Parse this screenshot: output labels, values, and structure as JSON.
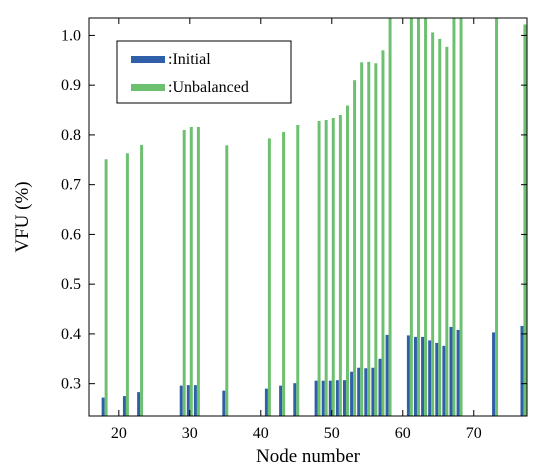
{
  "chart_data": {
    "type": "bar",
    "xlabel": "Node number",
    "ylabel": "VFU (%)",
    "xlim": [
      15.8,
      77.5
    ],
    "ylim": [
      0.235,
      1.035
    ],
    "xticks": [
      20,
      30,
      40,
      50,
      60,
      70
    ],
    "yticks": [
      0.3,
      0.4,
      0.5,
      0.6,
      0.7,
      0.8,
      0.9,
      1.0
    ],
    "grid": false,
    "legend_position": "top-left",
    "series": [
      {
        "name": ":Initial",
        "color": "#2f5fa8",
        "x": [
          18,
          21,
          23,
          29,
          30,
          31,
          35,
          41,
          43,
          45,
          48,
          49,
          50,
          51,
          52,
          53,
          54,
          55,
          56,
          57,
          58,
          61,
          62,
          63,
          64,
          65,
          66,
          67,
          68,
          73,
          77,
          78
        ],
        "values": [
          0.272,
          0.275,
          0.283,
          0.296,
          0.297,
          0.297,
          0.286,
          0.29,
          0.296,
          0.301,
          0.306,
          0.306,
          0.306,
          0.307,
          0.307,
          0.324,
          0.332,
          0.331,
          0.332,
          0.35,
          0.398,
          0.397,
          0.394,
          0.394,
          0.387,
          0.382,
          0.376,
          0.414,
          0.408,
          0.403,
          0.416,
          0.416
        ]
      },
      {
        "name": ":Unbalanced",
        "color": "#6cc070",
        "x": [
          18,
          21,
          23,
          29,
          30,
          31,
          35,
          41,
          43,
          45,
          48,
          49,
          50,
          51,
          52,
          53,
          54,
          55,
          56,
          57,
          58,
          61,
          62,
          63,
          64,
          65,
          66,
          67,
          68,
          73,
          77,
          78
        ],
        "values": [
          0.751,
          0.763,
          0.78,
          0.81,
          0.816,
          0.816,
          0.779,
          0.793,
          0.806,
          0.82,
          0.828,
          0.83,
          0.834,
          0.84,
          0.859,
          0.91,
          0.946,
          0.947,
          0.944,
          0.97,
          1.035,
          1.035,
          1.035,
          1.035,
          1.006,
          0.993,
          0.977,
          1.035,
          1.035,
          1.035,
          1.022,
          1.022
        ]
      }
    ]
  }
}
